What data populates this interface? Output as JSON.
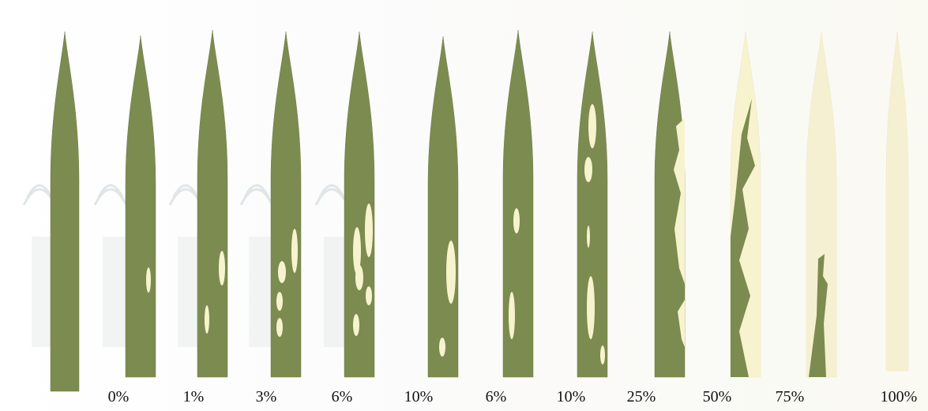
{
  "leaf_colors": {
    "healthy": "#7c8b4f",
    "lesion": "#f7f3cf",
    "dead": "#f6f0d2"
  },
  "leaves": [
    {
      "label": "",
      "lesion_pct": null
    },
    {
      "label": "0%",
      "lesion_pct": 0
    },
    {
      "label": "1%",
      "lesion_pct": 1
    },
    {
      "label": "3%",
      "lesion_pct": 3
    },
    {
      "label": "6%",
      "lesion_pct": 6
    },
    {
      "label": "10%",
      "lesion_pct": 10
    },
    {
      "label": "6%",
      "lesion_pct": 6
    },
    {
      "label": "10%",
      "lesion_pct": 10
    },
    {
      "label": "25%",
      "lesion_pct": 25
    },
    {
      "label": "50%",
      "lesion_pct": 50
    },
    {
      "label": "75%",
      "lesion_pct": 75
    },
    {
      "label": "100%",
      "lesion_pct": 100
    }
  ]
}
